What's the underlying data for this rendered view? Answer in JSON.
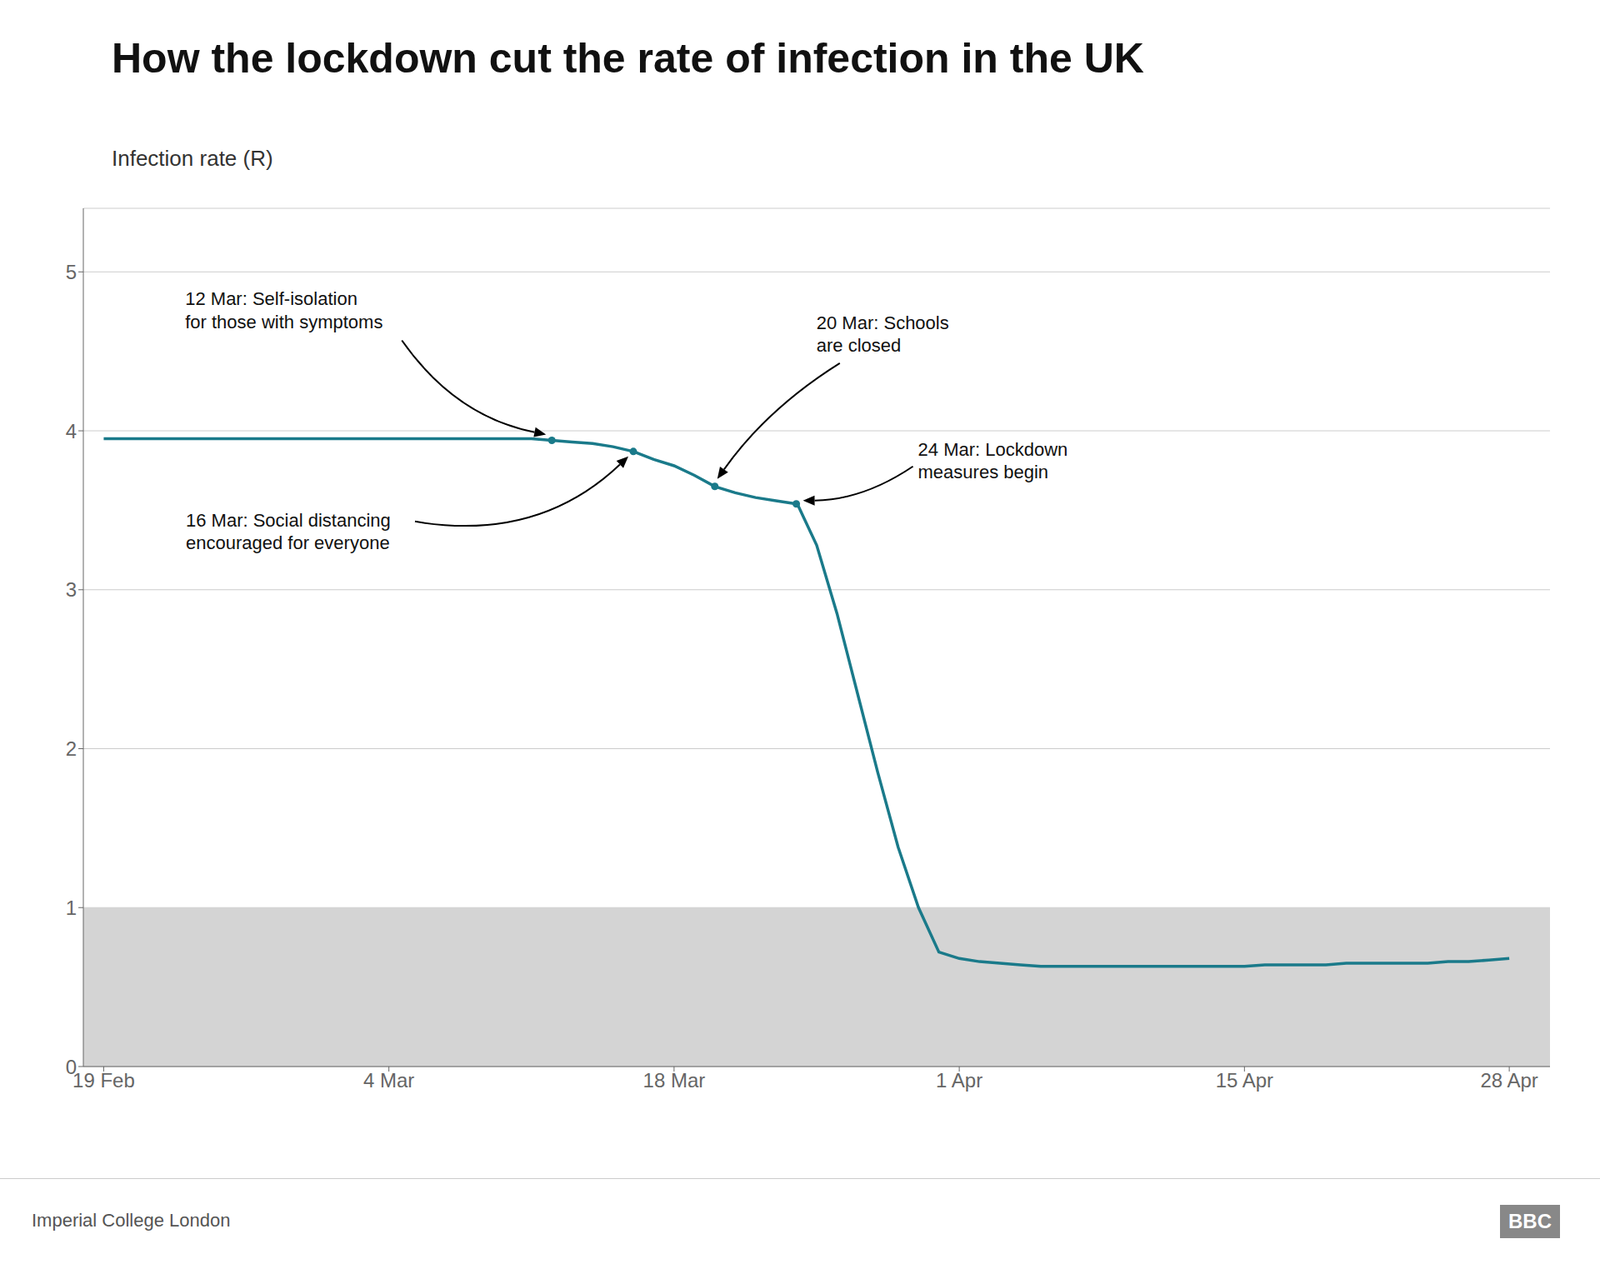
{
  "chart_data": {
    "type": "line",
    "title": "How the lockdown cut the rate of infection in the UK",
    "ylabel": "Infection rate (R)",
    "xlim": [
      -1,
      71
    ],
    "xticks": [
      {
        "value": 0,
        "label": "19 Feb"
      },
      {
        "value": 14,
        "label": "4 Mar"
      },
      {
        "value": 28,
        "label": "18 Mar"
      },
      {
        "value": 42,
        "label": "1 Apr"
      },
      {
        "value": 56,
        "label": "15 Apr"
      },
      {
        "value": 69,
        "label": "28 Apr"
      }
    ],
    "ylim": [
      0,
      5.4
    ],
    "yticks": [
      0,
      1,
      2,
      3,
      4,
      5
    ],
    "grid": true,
    "shaded_band": {
      "y": [
        0,
        1
      ],
      "color": "#d4d4d4"
    },
    "series": [
      {
        "type": "line",
        "color": "#1a7a8a",
        "x": [
          0,
          1,
          2,
          3,
          4,
          5,
          6,
          7,
          8,
          9,
          10,
          11,
          12,
          13,
          14,
          15,
          16,
          17,
          18,
          19,
          20,
          21,
          22,
          23,
          24,
          25,
          26,
          27,
          28,
          29,
          30,
          31,
          32,
          33,
          34,
          34.05,
          35,
          36,
          37,
          38,
          39,
          40,
          41,
          42,
          43,
          44,
          45,
          46,
          47,
          48,
          49,
          50,
          51,
          52,
          53,
          54,
          55,
          56,
          57,
          58,
          59,
          60,
          61,
          62,
          63,
          64,
          65,
          66,
          67,
          68,
          69
        ],
        "values": [
          3.95,
          3.95,
          3.95,
          3.95,
          3.95,
          3.95,
          3.95,
          3.95,
          3.95,
          3.95,
          3.95,
          3.95,
          3.95,
          3.95,
          3.95,
          3.95,
          3.95,
          3.95,
          3.95,
          3.95,
          3.95,
          3.95,
          3.94,
          3.93,
          3.92,
          3.9,
          3.87,
          3.82,
          3.78,
          3.72,
          3.65,
          3.61,
          3.58,
          3.56,
          3.54,
          3.54,
          3.28,
          2.85,
          2.35,
          1.85,
          1.38,
          1.0,
          0.72,
          0.68,
          0.66,
          0.65,
          0.64,
          0.63,
          0.63,
          0.63,
          0.63,
          0.63,
          0.63,
          0.63,
          0.63,
          0.63,
          0.63,
          0.63,
          0.64,
          0.64,
          0.64,
          0.64,
          0.65,
          0.65,
          0.65,
          0.65,
          0.65,
          0.66,
          0.66,
          0.67,
          0.68
        ]
      },
      {
        "type": "scatter",
        "marker": "circle",
        "color": "#1a7a8a",
        "x": [
          22,
          26,
          30,
          34
        ],
        "values": [
          3.94,
          3.87,
          3.65,
          3.54
        ]
      }
    ],
    "annotations": [
      {
        "text": "12 Mar: Self-isolation\nfor those with symptoms",
        "x": 22,
        "y": 3.94
      },
      {
        "text": "16 Mar: Social distancing\nencouraged for everyone",
        "x": 26,
        "y": 3.87
      },
      {
        "text": "20 Mar: Schools\nare closed",
        "x": 30,
        "y": 3.65
      },
      {
        "text": "24 Mar: Lockdown\nmeasures begin",
        "x": 34,
        "y": 3.54
      }
    ],
    "source": "Imperial College London",
    "logo": "BBC"
  }
}
